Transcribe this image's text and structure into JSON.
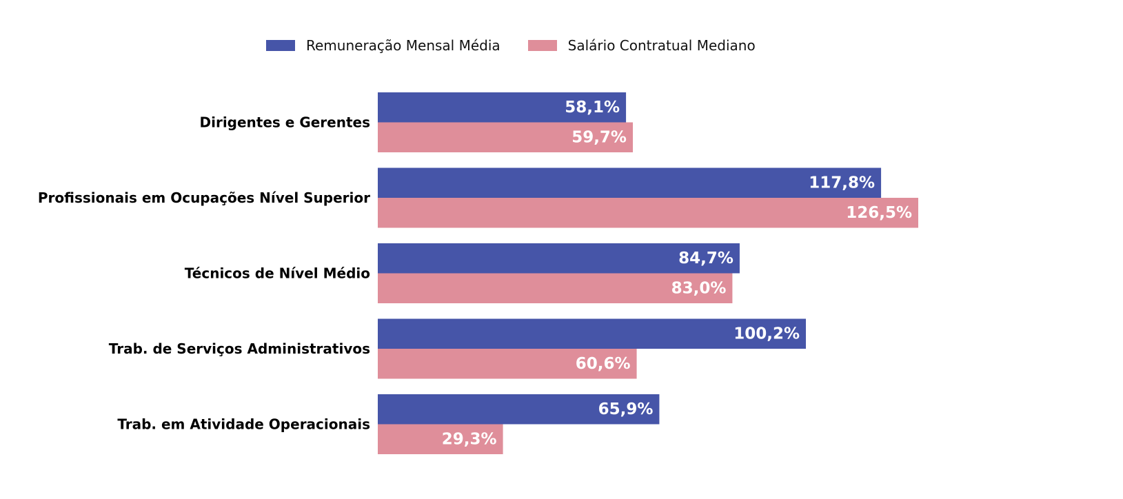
{
  "chart_data": {
    "type": "bar",
    "orientation": "horizontal",
    "categories": [
      "Dirigentes e Gerentes",
      "Profissionais em Ocupações Nível Superior",
      "Técnicos de Nível Médio",
      "Trab. de Serviços Administrativos",
      "Trab. em Atividade Operacionais"
    ],
    "series": [
      {
        "name": "Remuneração Mensal Média",
        "color": "#4655a8",
        "values": [
          58.1,
          117.8,
          84.7,
          100.2,
          65.9
        ],
        "labels": [
          "58,1%",
          "117,8%",
          "84,7%",
          "100,2%",
          "65,9%"
        ]
      },
      {
        "name": "Salário Contratual Mediano",
        "color": "#df8e9a",
        "values": [
          59.7,
          126.5,
          83.0,
          60.6,
          29.3
        ],
        "labels": [
          "59,7%",
          "126,5%",
          "83,0%",
          "60,6%",
          "29,3%"
        ]
      }
    ],
    "xlim": [
      0,
      126.5
    ],
    "legend_position": "top-center",
    "grid": false,
    "axes_visible": false
  }
}
